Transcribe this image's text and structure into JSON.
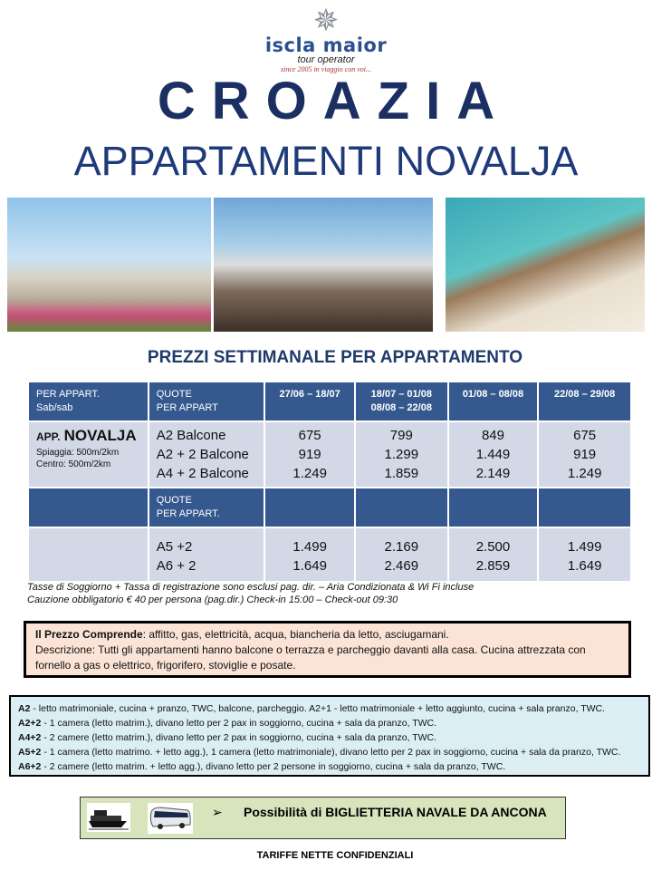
{
  "logo": {
    "brand": "iscla maior",
    "sub": "tour operator",
    "since": "since 2005 in viaggio con voi..."
  },
  "title": "CROAZIA",
  "subtitle": "APPARTAMENTI  NOVALJA",
  "section_title": "PREZZI SETTIMANALE PER APPARTAMENTO",
  "table": {
    "header": [
      "PER APPART.",
      "Sab/sab",
      "QUOTE",
      "PER APPART",
      "27/06 – 18/07",
      "18/07 – 01/08",
      "08/08 – 22/08",
      "01/08 – 08/08",
      "22/08 – 29/08"
    ],
    "app_label": "APP.",
    "app_name": "NOVALJA",
    "spiaggia": "Spiaggia: 500m/2km",
    "centro": "Centro: 500m/2km",
    "rows1": [
      {
        "type": "A2 Balcone",
        "prices": [
          "675",
          "799",
          "849",
          "675"
        ]
      },
      {
        "type": "A2 + 2 Balcone",
        "prices": [
          "919",
          "1.299",
          "1.449",
          "919"
        ]
      },
      {
        "type": "A4 + 2 Balcone",
        "prices": [
          "1.249",
          "1.859",
          "2.149",
          "1.249"
        ]
      }
    ],
    "subheader": [
      "QUOTE",
      "PER APPART."
    ],
    "rows2": [
      {
        "type": "A5 +2",
        "prices": [
          "1.499",
          "2.169",
          "2.500",
          "1.499"
        ]
      },
      {
        "type": "A6 + 2",
        "prices": [
          "1.649",
          "2.469",
          "2.859",
          "1.649"
        ]
      }
    ]
  },
  "notes": [
    "Tasse di Soggiorno +  Tassa di registrazione sono esclusi pag. dir. – Aria Condizionata & Wi Fi incluse",
    "Cauzione obbligatorio € 40 per persona (pag.dir.) Check-in 15:00 – Check-out 09:30"
  ],
  "includes": {
    "label": "Il Prezzo Comprende",
    "text": ": affitto, gas, elettricità, acqua, biancheria da letto, asciugamani.",
    "desc": "Descrizione: Tutti gli appartamenti hanno balcone o terrazza e parcheggio davanti alla casa. Cucina attrezzata con fornello a gas o elettrico, frigorifero, stoviglie e posate."
  },
  "types": [
    {
      "code": "A2",
      "text": " - letto matrimoniale, cucina + pranzo, TWC, balcone, parcheggio. A2+1 - letto matrimoniale + letto aggiunto, cucina + sala pranzo, TWC."
    },
    {
      "code": "A2+2",
      "text": " - 1 camera (letto matrim.), divano letto per 2 pax in soggiorno, cucina + sala da pranzo, TWC."
    },
    {
      "code": "A4+2",
      "text": " - 2 camere (letto matrim.), divano letto per 2 pax in soggiorno, cucina + sala da pranzo, TWC."
    },
    {
      "code": "A5+2",
      "text": " - 1 camera (letto matrimo. + letto agg.), 1 camera (letto matrimoniale), divano letto per 2 pax in soggiorno, cucina + sala da pranzo, TWC."
    },
    {
      "code": "A6+2",
      "text": " - 2 camere (letto matrim. + letto agg.), divano letto per 2 persone in soggiorno, cucina + sala da pranzo, TWC."
    }
  ],
  "ticket": {
    "arrow": "➢",
    "text": "Possibilità di BIGLIETTERIA NAVALE DA ANCONA"
  },
  "footer": "TARIFFE NETTE CONFIDENZIALI",
  "colors": {
    "title": "#1b2f63",
    "table_header": "#35598f",
    "table_body": "#d3d8e6",
    "peach": "#fbe3d6",
    "blue": "#dbeef3",
    "green": "#d8e4bc"
  }
}
